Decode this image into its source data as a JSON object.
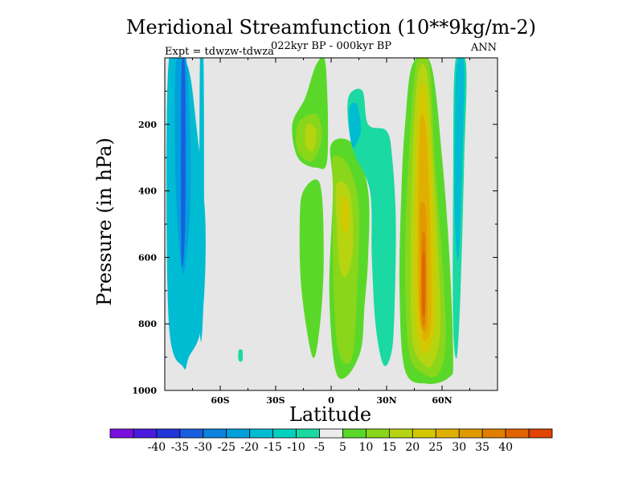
{
  "chart_data": {
    "type": "heatmap",
    "title": "Meridional Streamfunction (10**9kg/m-2)",
    "subtitle": "022kyr BP - 000kyr BP",
    "experiment_label": "Expt = tdwzw-tdwza",
    "season_label": "ANN",
    "xlabel": "Latitude",
    "ylabel": "Pressure (in hPa)",
    "x_ticks": [
      {
        "value": -60,
        "label": "60S"
      },
      {
        "value": -30,
        "label": "30S"
      },
      {
        "value": 0,
        "label": "0"
      },
      {
        "value": 30,
        "label": "30N"
      },
      {
        "value": 60,
        "label": "60N"
      }
    ],
    "y_ticks": [
      {
        "value": 200,
        "label": "200"
      },
      {
        "value": 400,
        "label": "400"
      },
      {
        "value": 600,
        "label": "600"
      },
      {
        "value": 800,
        "label": "800"
      },
      {
        "value": 1000,
        "label": "1000"
      }
    ],
    "xlim": [
      -90,
      90
    ],
    "ylim": [
      1000,
      0
    ],
    "background_color": "#e6e6e6",
    "colorbar": {
      "colors": [
        "#7a10e0",
        "#4a1adc",
        "#2236d8",
        "#1a5ee0",
        "#0b82dc",
        "#00a0dc",
        "#00bcd2",
        "#00d2c0",
        "#1ad9a2",
        "#ececec",
        "#5ad82a",
        "#8ad61a",
        "#b6d410",
        "#d4c800",
        "#e0b000",
        "#e09a00",
        "#e07e00",
        "#e06400",
        "#e04400"
      ],
      "labels": [
        "-40",
        "-35",
        "-30",
        "-25",
        "-20",
        "-15",
        "-10",
        "-5",
        "5",
        "10",
        "15",
        "20",
        "25",
        "30",
        "35",
        "40"
      ]
    },
    "contours": [
      {
        "level": -10,
        "color": "#00bcd2",
        "region": "40S-80S band, 50-930 hPa",
        "points": [
          [
            -88,
            20
          ],
          [
            -78,
            20
          ],
          [
            -73,
            200
          ],
          [
            -68,
            500
          ],
          [
            -70,
            800
          ],
          [
            -77,
            900
          ],
          [
            -80,
            930
          ],
          [
            -88,
            780
          ]
        ]
      },
      {
        "level": -10,
        "color": "#00bcd2",
        "region": "south polar strip",
        "points": [
          [
            -71,
            20
          ],
          [
            -69,
            20
          ],
          [
            -69,
            700
          ],
          [
            -71,
            800
          ]
        ]
      },
      {
        "level": -15,
        "color": "#00a0dc",
        "region": "south polar core",
        "points": [
          [
            -84,
            20
          ],
          [
            -78,
            20
          ],
          [
            -76,
            400
          ],
          [
            -80,
            650
          ],
          [
            -84,
            400
          ]
        ]
      },
      {
        "level": -20,
        "color": "#1a5ee0",
        "region": "south polar core",
        "points": [
          [
            -81,
            50
          ],
          [
            -79,
            50
          ],
          [
            -79,
            500
          ],
          [
            -81,
            600
          ]
        ]
      },
      {
        "level": 5,
        "color": "#5ad82a",
        "region": "southern tropics upper",
        "points": [
          [
            -8,
            20
          ],
          [
            -3,
            20
          ],
          [
            -2,
            300
          ],
          [
            -8,
            330
          ],
          [
            -18,
            300
          ],
          [
            -21,
            200
          ],
          [
            -14,
            120
          ]
        ]
      },
      {
        "level": 10,
        "color": "#8ad61a",
        "region": "southern tropics upper",
        "points": [
          [
            -17,
            190
          ],
          [
            -8,
            170
          ],
          [
            -5,
            240
          ],
          [
            -10,
            310
          ],
          [
            -17,
            290
          ],
          [
            -19,
            240
          ]
        ]
      },
      {
        "level": 15,
        "color": "#b6d410",
        "region": "southern tropics upper",
        "points": [
          [
            -13,
            200
          ],
          [
            -8,
            220
          ],
          [
            -10,
            280
          ],
          [
            -14,
            260
          ]
        ]
      },
      {
        "level": 5,
        "color": "#5ad82a",
        "region": "tropical lower column",
        "points": [
          [
            -15,
            400
          ],
          [
            -6,
            380
          ],
          [
            -4,
            600
          ],
          [
            -6,
            800
          ],
          [
            -10,
            900
          ],
          [
            -16,
            700
          ],
          [
            -17,
            500
          ]
        ]
      },
      {
        "level": 5,
        "color": "#5ad82a",
        "region": "Hadley cell center",
        "points": [
          [
            0,
            260
          ],
          [
            12,
            260
          ],
          [
            20,
            400
          ],
          [
            20,
            600
          ],
          [
            18,
            750
          ],
          [
            16,
            880
          ],
          [
            8,
            960
          ],
          [
            2,
            930
          ],
          [
            -1,
            700
          ],
          [
            1,
            400
          ]
        ]
      },
      {
        "level": 10,
        "color": "#8ad61a",
        "region": "Hadley cell center",
        "points": [
          [
            1,
            300
          ],
          [
            9,
            320
          ],
          [
            15,
            450
          ],
          [
            14,
            700
          ],
          [
            12,
            880
          ],
          [
            8,
            920
          ],
          [
            3,
            850
          ],
          [
            1,
            600
          ],
          [
            1,
            400
          ]
        ]
      },
      {
        "level": 15,
        "color": "#b6d410",
        "region": "Hadley cell center",
        "points": [
          [
            3,
            380
          ],
          [
            10,
            400
          ],
          [
            12,
            550
          ],
          [
            9,
            650
          ],
          [
            5,
            640
          ],
          [
            3,
            500
          ]
        ]
      },
      {
        "level": 20,
        "color": "#d4c800",
        "region": "Hadley cell center",
        "points": [
          [
            6,
            420
          ],
          [
            9,
            440
          ],
          [
            9,
            520
          ],
          [
            6,
            510
          ]
        ]
      },
      {
        "level": -5,
        "color": "#1ad9a2",
        "region": "equatorial negative",
        "points": [
          [
            10,
            110
          ],
          [
            17,
            100
          ],
          [
            20,
            200
          ],
          [
            30,
            220
          ],
          [
            33,
            300
          ],
          [
            35,
            500
          ],
          [
            34,
            800
          ],
          [
            32,
            900
          ],
          [
            28,
            920
          ],
          [
            24,
            800
          ],
          [
            22,
            600
          ],
          [
            21,
            400
          ],
          [
            12,
            280
          ],
          [
            9,
            180
          ]
        ]
      },
      {
        "level": -10,
        "color": "#00bcd2",
        "region": "equatorial negative core",
        "points": [
          [
            10,
            150
          ],
          [
            14,
            140
          ],
          [
            16,
            220
          ],
          [
            12,
            270
          ],
          [
            10,
            220
          ]
        ]
      },
      {
        "level": 5,
        "color": "#5ad82a",
        "region": "northern mid-latitude positive",
        "points": [
          [
            44,
            20
          ],
          [
            54,
            20
          ],
          [
            60,
            300
          ],
          [
            64,
            600
          ],
          [
            66,
            900
          ],
          [
            64,
            960
          ],
          [
            52,
            980
          ],
          [
            40,
            940
          ],
          [
            37,
            700
          ],
          [
            38,
            400
          ],
          [
            40,
            200
          ]
        ]
      },
      {
        "level": 10,
        "color": "#8ad61a",
        "region": "northern mid-latitude positive",
        "points": [
          [
            46,
            20
          ],
          [
            53,
            20
          ],
          [
            56,
            300
          ],
          [
            60,
            600
          ],
          [
            62,
            850
          ],
          [
            58,
            950
          ],
          [
            50,
            950
          ],
          [
            42,
            880
          ],
          [
            40,
            600
          ],
          [
            42,
            300
          ]
        ]
      },
      {
        "level": 15,
        "color": "#b6d410",
        "region": "northern mid-latitude positive",
        "points": [
          [
            47,
            50
          ],
          [
            52,
            50
          ],
          [
            55,
            300
          ],
          [
            58,
            600
          ],
          [
            59,
            820
          ],
          [
            55,
            920
          ],
          [
            50,
            920
          ],
          [
            44,
            850
          ],
          [
            43,
            600
          ],
          [
            44,
            300
          ]
        ]
      },
      {
        "level": 20,
        "color": "#d4c800",
        "region": "northern mid-latitude positive",
        "points": [
          [
            48,
            100
          ],
          [
            51,
            100
          ],
          [
            54,
            300
          ],
          [
            56,
            600
          ],
          [
            56,
            800
          ],
          [
            53,
            880
          ],
          [
            49,
            880
          ],
          [
            46,
            800
          ],
          [
            45,
            600
          ],
          [
            46,
            300
          ]
        ]
      },
      {
        "level": 25,
        "color": "#e0b000",
        "region": "northern mid-latitude positive",
        "points": [
          [
            48,
            200
          ],
          [
            51,
            200
          ],
          [
            53,
            400
          ],
          [
            54,
            600
          ],
          [
            54,
            800
          ],
          [
            51,
            850
          ],
          [
            49,
            820
          ],
          [
            47,
            700
          ],
          [
            47,
            500
          ]
        ]
      },
      {
        "level": 30,
        "color": "#e09a00",
        "region": "northern mid-latitude positive",
        "points": [
          [
            48,
            450
          ],
          [
            51,
            450
          ],
          [
            52,
            600
          ],
          [
            52,
            800
          ],
          [
            50,
            820
          ],
          [
            48,
            780
          ],
          [
            48,
            600
          ]
        ]
      },
      {
        "level": 35,
        "color": "#e07e00",
        "region": "northern mid-latitude positive",
        "points": [
          [
            49,
            550
          ],
          [
            51,
            550
          ],
          [
            51,
            780
          ],
          [
            49,
            780
          ]
        ]
      },
      {
        "level": 40,
        "color": "#e06400",
        "region": "northern mid-latitude positive",
        "points": [
          [
            49.3,
            600
          ],
          [
            50.7,
            600
          ],
          [
            50.7,
            760
          ],
          [
            49.3,
            760
          ]
        ]
      },
      {
        "level": -5,
        "color": "#1ad9a2",
        "region": "northern high latitude",
        "points": [
          [
            67,
            20
          ],
          [
            73,
            20
          ],
          [
            72,
            300
          ],
          [
            70,
            700
          ],
          [
            68,
            900
          ],
          [
            66,
            800
          ],
          [
            66,
            400
          ]
        ]
      },
      {
        "level": -10,
        "color": "#00bcd2",
        "region": "northern high latitude",
        "points": [
          [
            68,
            20
          ],
          [
            72,
            20
          ],
          [
            71,
            300
          ],
          [
            69,
            600
          ],
          [
            67,
            500
          ],
          [
            67,
            200
          ]
        ]
      },
      {
        "level": -5,
        "color": "#1ad9a2",
        "region": "isolated cell",
        "points": [
          [
            -50,
            880
          ],
          [
            -48,
            880
          ],
          [
            -48,
            910
          ],
          [
            -50,
            910
          ]
        ]
      }
    ]
  }
}
